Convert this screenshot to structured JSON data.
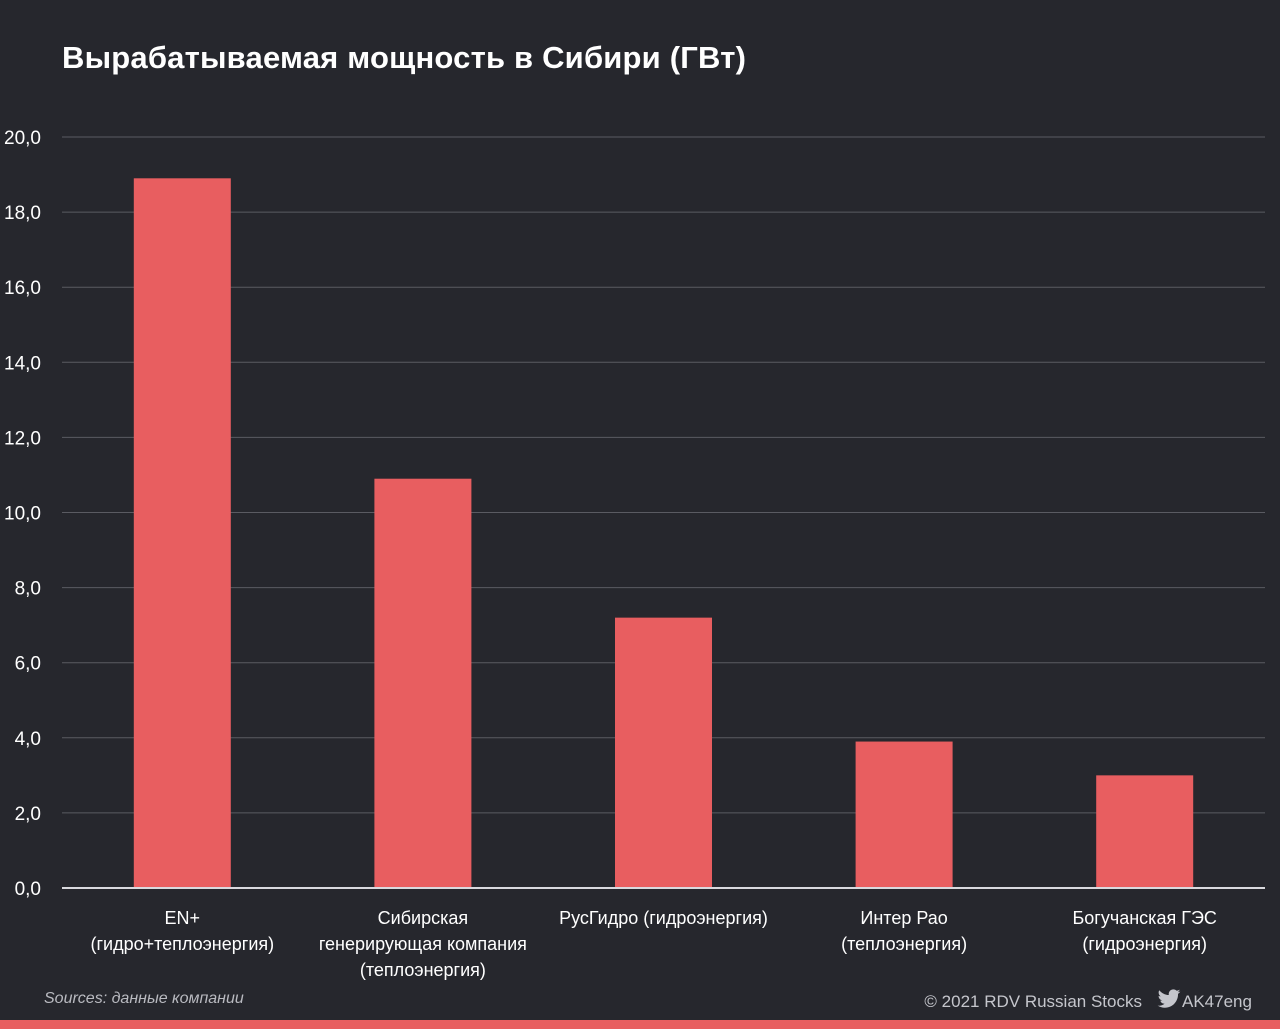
{
  "chart_data": {
    "type": "bar",
    "title": "Вырабатываемая мощность в Сибири (ГВт)",
    "categories": [
      [
        "EN+",
        "(гидро+теплоэнергия)"
      ],
      [
        "Сибирская",
        "генерирующая компания",
        "(теплоэнергия)"
      ],
      [
        "РусГидро (гидроэнергия)"
      ],
      [
        "Интер Рао",
        "(теплоэнергия)"
      ],
      [
        "Богучанская ГЭС",
        "(гидроэнергия)"
      ]
    ],
    "values": [
      18.9,
      10.9,
      7.2,
      3.9,
      3.0
    ],
    "ylim": [
      0,
      20
    ],
    "yticks": [
      "0,0",
      "2,0",
      "4,0",
      "6,0",
      "8,0",
      "10,0",
      "12,0",
      "14,0",
      "16,0",
      "18,0",
      "20,0"
    ],
    "grid": true,
    "bar_color": "#e85e60",
    "background": "#26272d"
  },
  "footer": {
    "source": "Sources: данные компании",
    "credit": "© 2021  RDV Russian Stocks",
    "handle": "AK47eng"
  },
  "icons": {
    "twitter": "twitter-icon"
  }
}
